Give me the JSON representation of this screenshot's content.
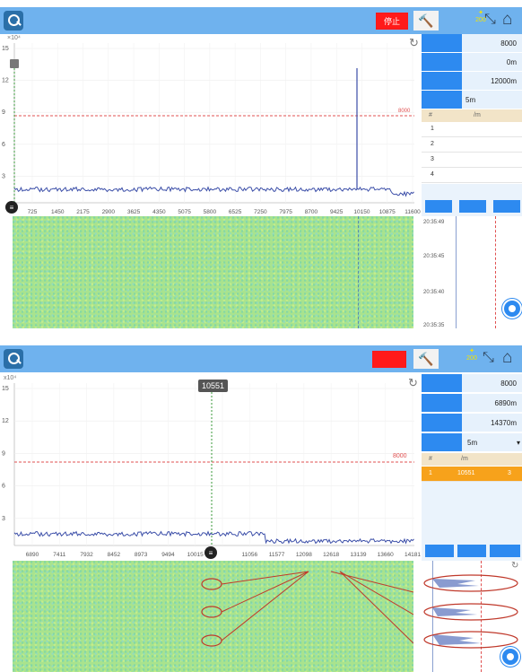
{
  "panels": [
    {
      "stop_label": "停止",
      "signal_label": "200",
      "y_exponent": "×10⁴",
      "y_ticks": [
        "15",
        "12",
        "9",
        "6",
        "3"
      ],
      "x_ticks": [
        "725",
        "1450",
        "2175",
        "2900",
        "3625",
        "4350",
        "5075",
        "5800",
        "6525",
        "7250",
        "7975",
        "8700",
        "9425",
        "10150",
        "10875",
        "11600"
      ],
      "threshold_label": "8000",
      "sidebar": {
        "rows": [
          "8000",
          "0m",
          "12000m",
          "5m"
        ],
        "table_header": [
          "#",
          "/m",
          ""
        ],
        "table_rows": [
          [
            "1",
            "",
            ""
          ],
          [
            "2",
            "",
            ""
          ],
          [
            "3",
            "",
            ""
          ],
          [
            "4",
            "",
            ""
          ]
        ]
      },
      "timestamps": [
        "20:35:49",
        "20:35:45",
        "20:35:40",
        "20:35:35"
      ]
    },
    {
      "stop_label": "",
      "signal_label": "200",
      "y_exponent": "x10⁴",
      "y_ticks": [
        "15",
        "12",
        "9",
        "6",
        "3"
      ],
      "x_ticks": [
        "6890",
        "7411",
        "7932",
        "8452",
        "8973",
        "9494",
        "10015",
        "",
        "11056",
        "11577",
        "12098",
        "12618",
        "13139",
        "13660",
        "14181"
      ],
      "threshold_label": "8000",
      "cursor_label": "10551",
      "sidebar": {
        "rows": [
          "8000",
          "6890m",
          "14370m",
          "5m"
        ],
        "table_header": [
          "#",
          "/m",
          ""
        ],
        "table_rows": [
          [
            "1",
            "10551",
            "3"
          ]
        ]
      }
    }
  ],
  "colors": {
    "topbar": "#6fb2ee",
    "accent": "#2d8af0",
    "stop": "#ff1a1a",
    "signal_line": "#3b4ea8",
    "threshold": "#e05050",
    "waterfall": "#a9e38d",
    "selected_row": "#f7a21b"
  }
}
